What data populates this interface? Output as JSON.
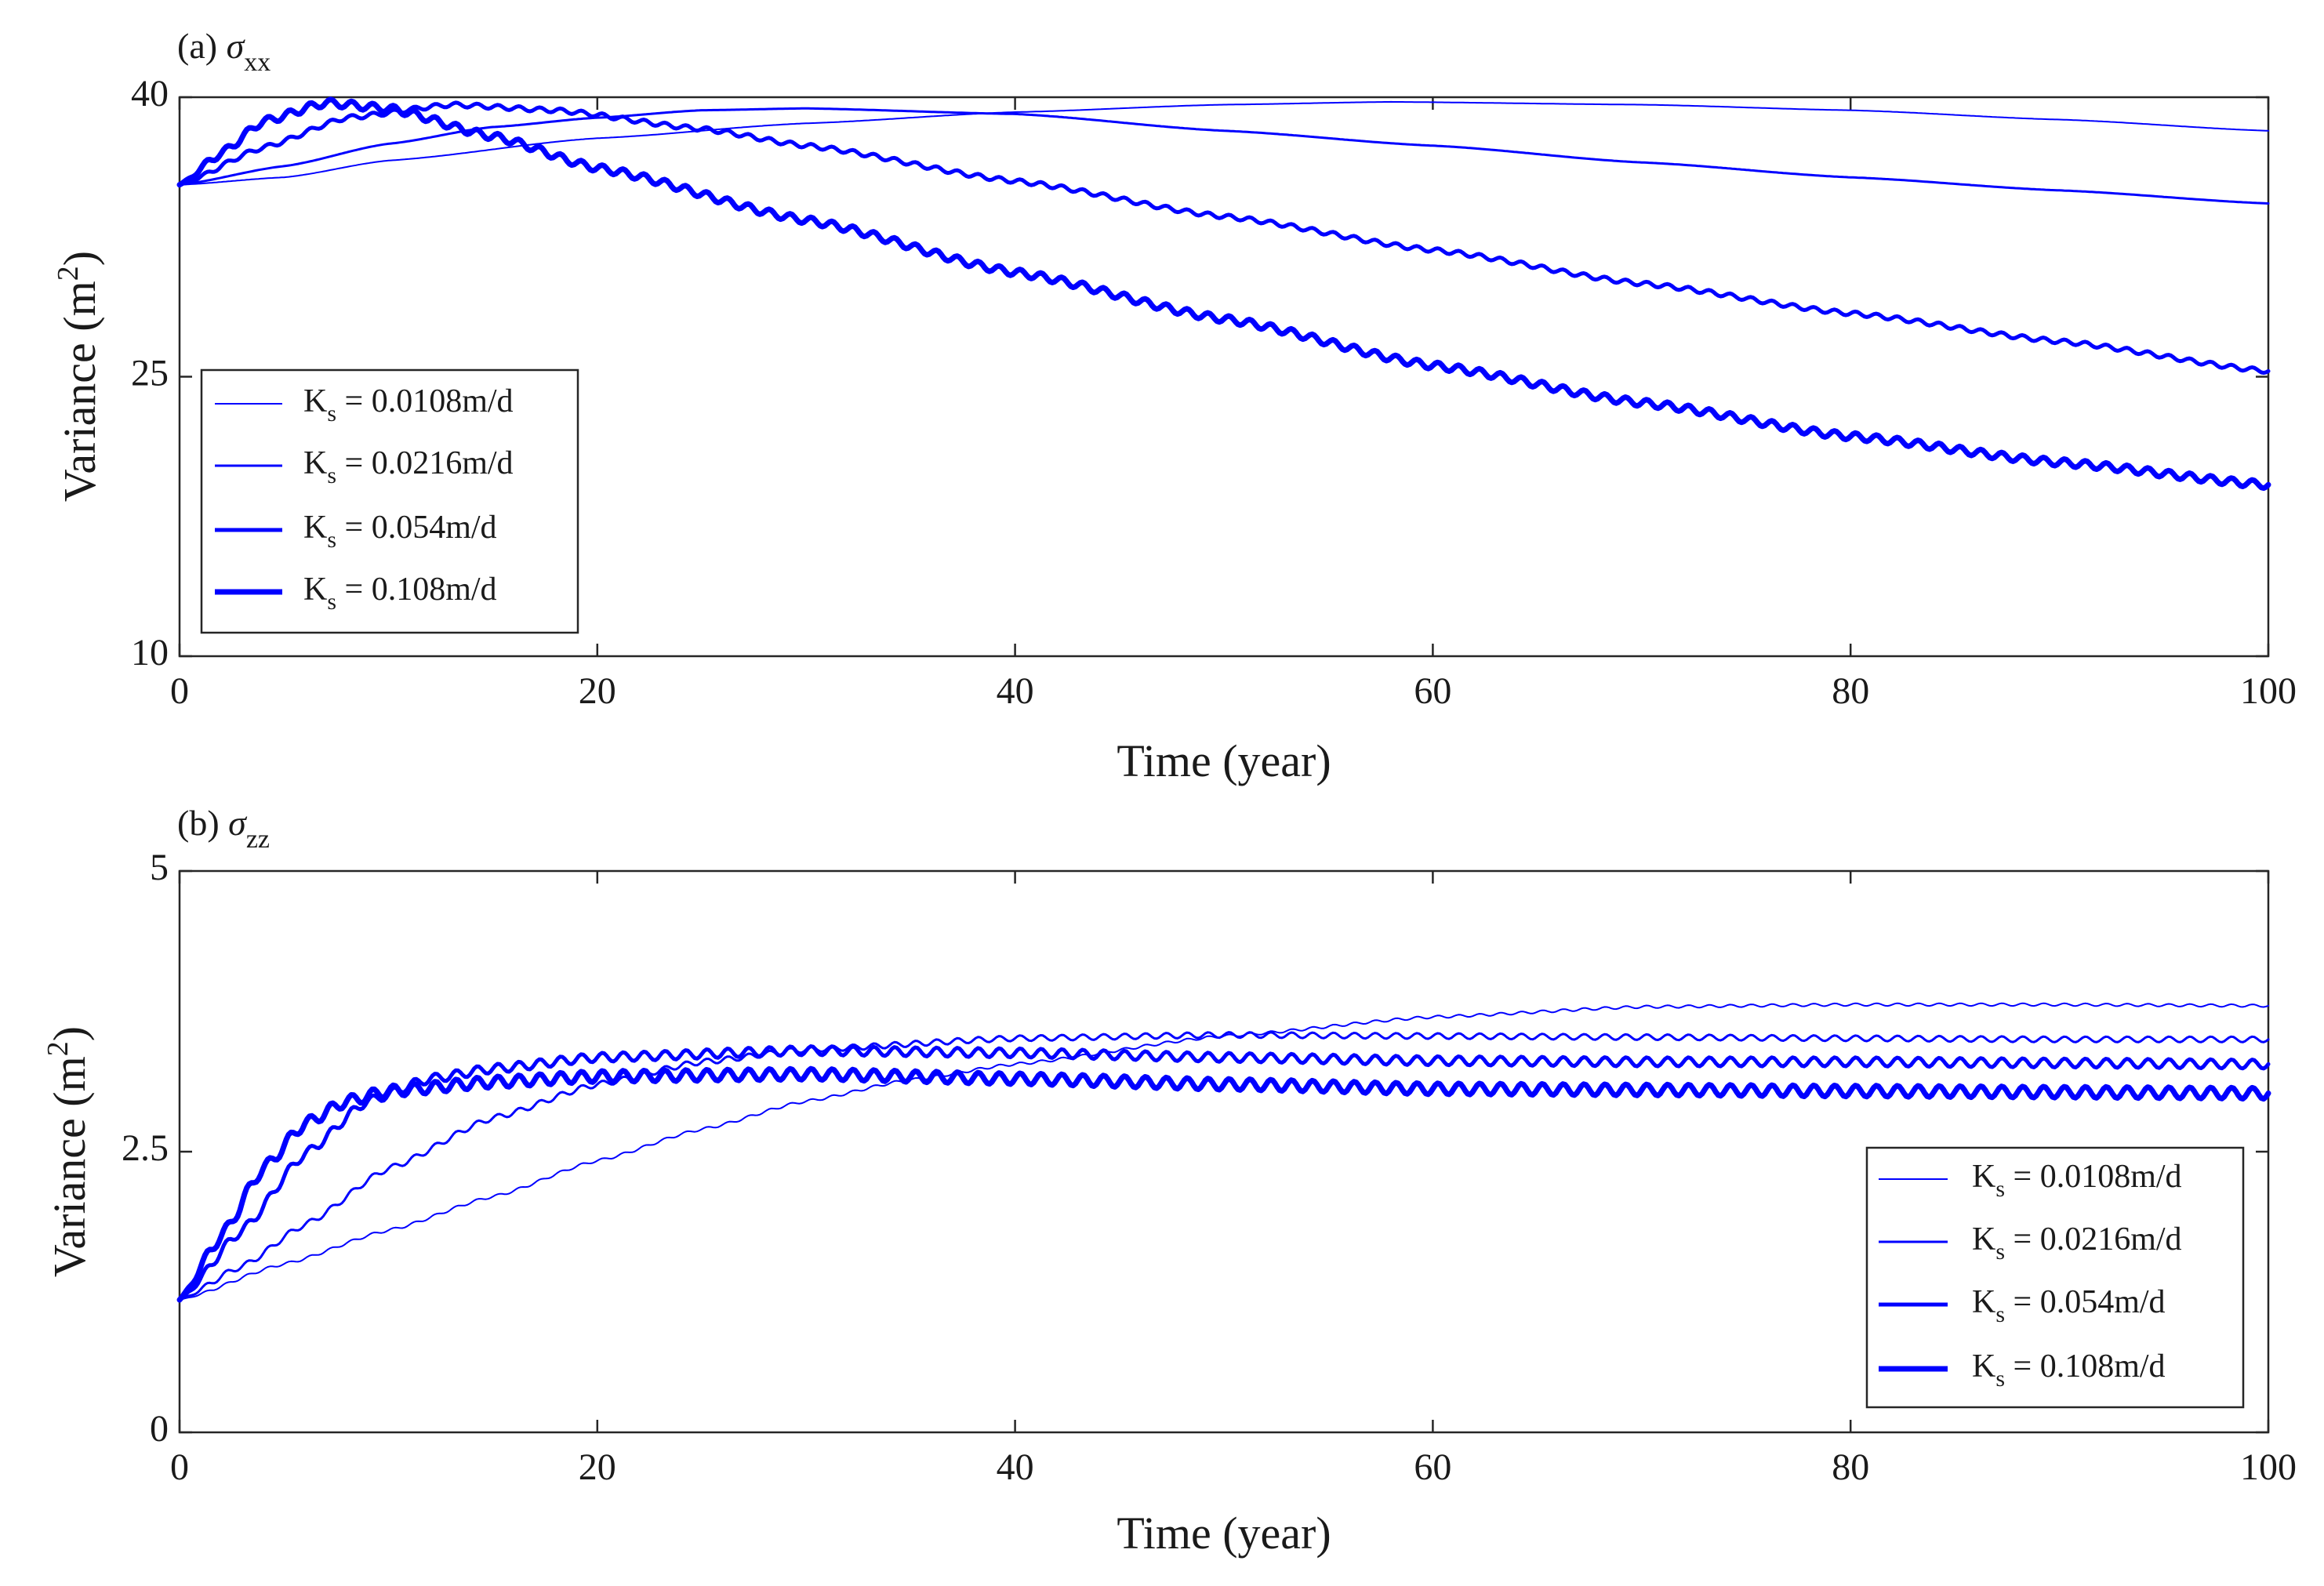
{
  "chart_data": [
    {
      "type": "line",
      "panel_label": "(a)",
      "title_symbol": "σ",
      "title_subscript": "xx",
      "xlabel": "Time (year)",
      "ylabel_main": "Variance (m",
      "ylabel_sup": "2",
      "ylabel_close": ")",
      "xlim": [
        0,
        100
      ],
      "ylim": [
        10,
        40
      ],
      "xticks": [
        0,
        20,
        40,
        60,
        80,
        100
      ],
      "yticks": [
        10,
        25,
        40
      ],
      "legend_location": "center-left",
      "series": [
        {
          "name": "Ks = 0.0108m/d",
          "label_main": "K",
          "label_sub": "s",
          "label_rest": " = 0.0108m/d",
          "color": "#0000ff",
          "linewidth": 2,
          "oscillation": 0,
          "points": [
            [
              0,
              35.3
            ],
            [
              5,
              35.7
            ],
            [
              10,
              36.6
            ],
            [
              20,
              37.8
            ],
            [
              30,
              38.6
            ],
            [
              40,
              39.2
            ],
            [
              50,
              39.6
            ],
            [
              58,
              39.75
            ],
            [
              70,
              39.6
            ],
            [
              80,
              39.3
            ],
            [
              90,
              38.8
            ],
            [
              100,
              38.2
            ]
          ]
        },
        {
          "name": "Ks = 0.0216m/d",
          "label_main": "K",
          "label_sub": "s",
          "label_rest": " = 0.0216m/d",
          "color": "#0000ff",
          "linewidth": 3,
          "oscillation": 0,
          "points": [
            [
              0,
              35.3
            ],
            [
              5,
              36.3
            ],
            [
              10,
              37.5
            ],
            [
              15,
              38.4
            ],
            [
              20,
              38.9
            ],
            [
              25,
              39.3
            ],
            [
              30,
              39.4
            ],
            [
              40,
              39.1
            ],
            [
              50,
              38.2
            ],
            [
              60,
              37.4
            ],
            [
              70,
              36.5
            ],
            [
              80,
              35.7
            ],
            [
              90,
              35.0
            ],
            [
              100,
              34.3
            ]
          ]
        },
        {
          "name": "Ks = 0.054m/d",
          "label_main": "K",
          "label_sub": "s",
          "label_rest": " = 0.054m/d",
          "color": "#0000ff",
          "linewidth": 5,
          "oscillation": 0.12,
          "points": [
            [
              0,
              35.3
            ],
            [
              4,
              37.3
            ],
            [
              8,
              38.9
            ],
            [
              13,
              39.6
            ],
            [
              18,
              39.3
            ],
            [
              25,
              38.3
            ],
            [
              30,
              37.4
            ],
            [
              40,
              35.5
            ],
            [
              50,
              33.6
            ],
            [
              60,
              31.8
            ],
            [
              70,
              30.0
            ],
            [
              80,
              28.4
            ],
            [
              90,
              26.9
            ],
            [
              100,
              25.3
            ]
          ]
        },
        {
          "name": "Ks = 0.108m/d",
          "label_main": "K",
          "label_sub": "s",
          "label_rest": " = 0.108m/d",
          "color": "#0000ff",
          "linewidth": 7,
          "oscillation": 0.2,
          "points": [
            [
              0,
              35.3
            ],
            [
              2,
              37.0
            ],
            [
              4,
              38.7
            ],
            [
              7,
              39.7
            ],
            [
              10,
              39.4
            ],
            [
              15,
              37.9
            ],
            [
              20,
              36.2
            ],
            [
              30,
              33.4
            ],
            [
              40,
              30.6
            ],
            [
              50,
              28.1
            ],
            [
              60,
              25.6
            ],
            [
              70,
              23.6
            ],
            [
              80,
              21.8
            ],
            [
              90,
              20.4
            ],
            [
              100,
              19.2
            ]
          ]
        }
      ]
    },
    {
      "type": "line",
      "panel_label": "(b)",
      "title_symbol": "σ",
      "title_subscript": "zz",
      "xlabel": "Time (year)",
      "ylabel_main": "Variance (m",
      "ylabel_sup": "2",
      "ylabel_close": ")",
      "xlim": [
        0,
        100
      ],
      "ylim": [
        0,
        5
      ],
      "xticks": [
        0,
        20,
        40,
        60,
        80,
        100
      ],
      "yticks": [
        0,
        2.5,
        5
      ],
      "legend_location": "lower-right",
      "series": [
        {
          "name": "Ks = 0.0108m/d",
          "label_main": "K",
          "label_sub": "s",
          "label_rest": " = 0.0108m/d",
          "color": "#0000ff",
          "linewidth": 2,
          "oscillation": 0.012,
          "points": [
            [
              0,
              1.18
            ],
            [
              5,
              1.5
            ],
            [
              10,
              1.8
            ],
            [
              15,
              2.1
            ],
            [
              20,
              2.42
            ],
            [
              25,
              2.7
            ],
            [
              30,
              2.95
            ],
            [
              35,
              3.14
            ],
            [
              40,
              3.28
            ],
            [
              50,
              3.53
            ],
            [
              60,
              3.7
            ],
            [
              70,
              3.79
            ],
            [
              80,
              3.81
            ],
            [
              90,
              3.81
            ],
            [
              100,
              3.8
            ]
          ]
        },
        {
          "name": "Ks = 0.0216m/d",
          "label_main": "K",
          "label_sub": "s",
          "label_rest": " = 0.0216m/d",
          "color": "#0000ff",
          "linewidth": 3,
          "oscillation": 0.025,
          "points": [
            [
              0,
              1.18
            ],
            [
              3,
              1.48
            ],
            [
              6,
              1.85
            ],
            [
              10,
              2.35
            ],
            [
              15,
              2.8
            ],
            [
              20,
              3.1
            ],
            [
              25,
              3.3
            ],
            [
              30,
              3.41
            ],
            [
              40,
              3.51
            ],
            [
              50,
              3.54
            ],
            [
              60,
              3.53
            ],
            [
              70,
              3.52
            ],
            [
              80,
              3.51
            ],
            [
              90,
              3.5
            ],
            [
              100,
              3.5
            ]
          ]
        },
        {
          "name": "Ks = 0.054m/d",
          "label_main": "K",
          "label_sub": "s",
          "label_rest": " = 0.054m/d",
          "color": "#0000ff",
          "linewidth": 5,
          "oscillation": 0.04,
          "points": [
            [
              0,
              1.18
            ],
            [
              3,
              1.8
            ],
            [
              6,
              2.48
            ],
            [
              9,
              2.95
            ],
            [
              12,
              3.15
            ],
            [
              15,
              3.24
            ],
            [
              20,
              3.34
            ],
            [
              30,
              3.4
            ],
            [
              40,
              3.38
            ],
            [
              50,
              3.34
            ],
            [
              60,
              3.31
            ],
            [
              70,
              3.3
            ],
            [
              80,
              3.3
            ],
            [
              90,
              3.29
            ],
            [
              100,
              3.28
            ]
          ]
        },
        {
          "name": "Ks = 0.108m/d",
          "label_main": "K",
          "label_sub": "s",
          "label_rest": " = 0.108m/d",
          "color": "#0000ff",
          "linewidth": 7,
          "oscillation": 0.05,
          "points": [
            [
              0,
              1.18
            ],
            [
              2,
              1.75
            ],
            [
              4,
              2.35
            ],
            [
              6,
              2.75
            ],
            [
              8,
              2.95
            ],
            [
              10,
              3.04
            ],
            [
              15,
              3.12
            ],
            [
              20,
              3.17
            ],
            [
              30,
              3.19
            ],
            [
              40,
              3.15
            ],
            [
              50,
              3.1
            ],
            [
              60,
              3.06
            ],
            [
              70,
              3.05
            ],
            [
              80,
              3.04
            ],
            [
              90,
              3.03
            ],
            [
              100,
              3.02
            ]
          ]
        }
      ]
    }
  ]
}
